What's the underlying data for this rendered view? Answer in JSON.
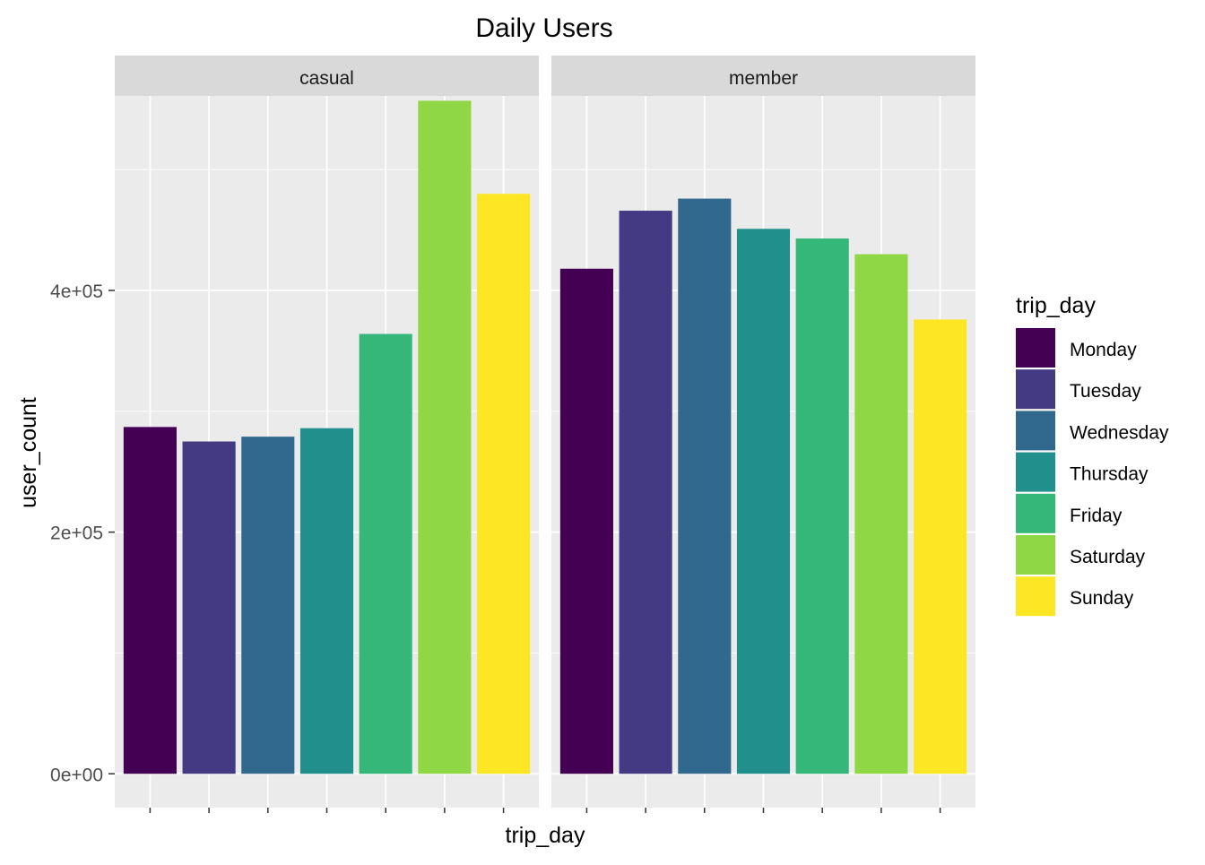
{
  "chart_data": {
    "type": "bar",
    "title": "Daily Users",
    "xlabel": "trip_day",
    "ylabel": "user_count",
    "ylim": [
      -28000,
      561000
    ],
    "y_ticks": [
      {
        "value": 0,
        "label": "0e+00"
      },
      {
        "value": 200000,
        "label": "2e+05"
      },
      {
        "value": 400000,
        "label": "4e+05"
      }
    ],
    "x_tick_labels_shown": false,
    "grid": true,
    "legend": {
      "title": "trip_day",
      "position": "right",
      "entries": [
        "Monday",
        "Tuesday",
        "Wednesday",
        "Thursday",
        "Friday",
        "Saturday",
        "Sunday"
      ]
    },
    "categories": [
      "Monday",
      "Tuesday",
      "Wednesday",
      "Thursday",
      "Friday",
      "Saturday",
      "Sunday"
    ],
    "colors": [
      "#440154",
      "#443983",
      "#31688E",
      "#21908C",
      "#35B779",
      "#8FD744",
      "#FDE725"
    ],
    "facets": [
      {
        "label": "casual",
        "values": [
          287000,
          275000,
          279000,
          286000,
          364000,
          557000,
          480000
        ]
      },
      {
        "label": "member",
        "values": [
          418000,
          466000,
          476000,
          451000,
          443000,
          430000,
          376000
        ]
      }
    ]
  }
}
